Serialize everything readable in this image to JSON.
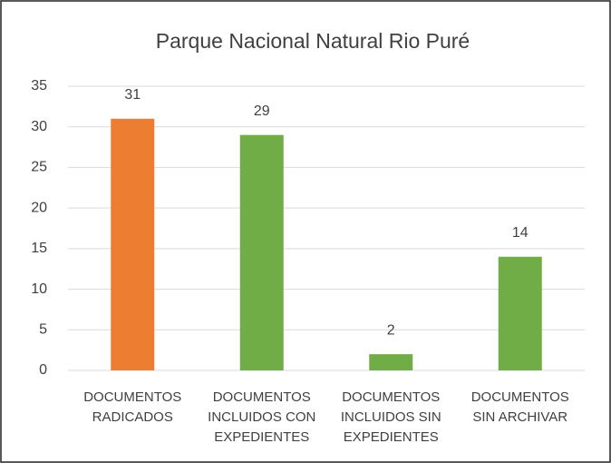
{
  "chart_data": {
    "type": "bar",
    "title": "Parque Nacional Natural Rio Puré",
    "categories": [
      "DOCUMENTOS\nRADICADOS",
      "DOCUMENTOS\nINCLUIDOS CON\nEXPEDIENTES",
      "DOCUMENTOS\nINCLUIDOS SIN\nEXPEDIENTES",
      "DOCUMENTOS\nSIN ARCHIVAR"
    ],
    "values": [
      31,
      29,
      2,
      14
    ],
    "colors": [
      "#ed7d31",
      "#70ad47",
      "#70ad47",
      "#70ad47"
    ],
    "ylim": [
      0,
      35
    ],
    "yticks": [
      0,
      5,
      10,
      15,
      20,
      25,
      30,
      35
    ],
    "grid": true
  }
}
